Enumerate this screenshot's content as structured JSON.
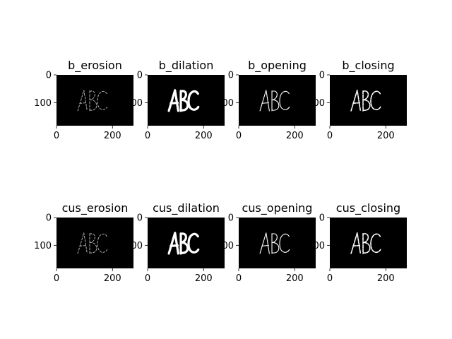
{
  "chart_data": [
    {
      "type": "image",
      "title": "b_erosion",
      "morph": "erosion",
      "image_text": "ABC",
      "xticks": [
        "0",
        "200"
      ],
      "yticks": [
        "0",
        "100"
      ],
      "xlim": [
        0,
        275
      ],
      "ylim": [
        183,
        0
      ]
    },
    {
      "type": "image",
      "title": "b_dilation",
      "morph": "dilation",
      "image_text": "ABC",
      "xticks": [
        "0",
        "200"
      ],
      "yticks": [
        "0",
        "100"
      ],
      "xlim": [
        0,
        275
      ],
      "ylim": [
        183,
        0
      ]
    },
    {
      "type": "image",
      "title": "b_opening",
      "morph": "opening",
      "image_text": "ABC",
      "xticks": [
        "0",
        "200"
      ],
      "yticks": [
        "0",
        "100"
      ],
      "xlim": [
        0,
        275
      ],
      "ylim": [
        183,
        0
      ]
    },
    {
      "type": "image",
      "title": "b_closing",
      "morph": "closing",
      "image_text": "ABC",
      "xticks": [
        "0",
        "200"
      ],
      "yticks": [
        "0",
        "100"
      ],
      "xlim": [
        0,
        275
      ],
      "ylim": [
        183,
        0
      ]
    },
    {
      "type": "image",
      "title": "cus_erosion",
      "morph": "erosion",
      "image_text": "ABC",
      "xticks": [
        "0",
        "200"
      ],
      "yticks": [
        "0",
        "100"
      ],
      "xlim": [
        0,
        275
      ],
      "ylim": [
        183,
        0
      ]
    },
    {
      "type": "image",
      "title": "cus_dilation",
      "morph": "dilation",
      "image_text": "ABC",
      "xticks": [
        "0",
        "200"
      ],
      "yticks": [
        "0",
        "100"
      ],
      "xlim": [
        0,
        275
      ],
      "ylim": [
        183,
        0
      ]
    },
    {
      "type": "image",
      "title": "cus_opening",
      "morph": "opening",
      "image_text": "ABC",
      "xticks": [
        "0",
        "200"
      ],
      "yticks": [
        "0",
        "100"
      ],
      "xlim": [
        0,
        275
      ],
      "ylim": [
        183,
        0
      ]
    },
    {
      "type": "image",
      "title": "cus_closing",
      "morph": "closing",
      "image_text": "ABC",
      "xticks": [
        "0",
        "200"
      ],
      "yticks": [
        "0",
        "100"
      ],
      "xlim": [
        0,
        275
      ],
      "ylim": [
        183,
        0
      ]
    }
  ],
  "colors": {
    "image_background": "#000000",
    "ink": "#ffffff",
    "axis": "#000000",
    "figure_background": "#ffffff"
  }
}
